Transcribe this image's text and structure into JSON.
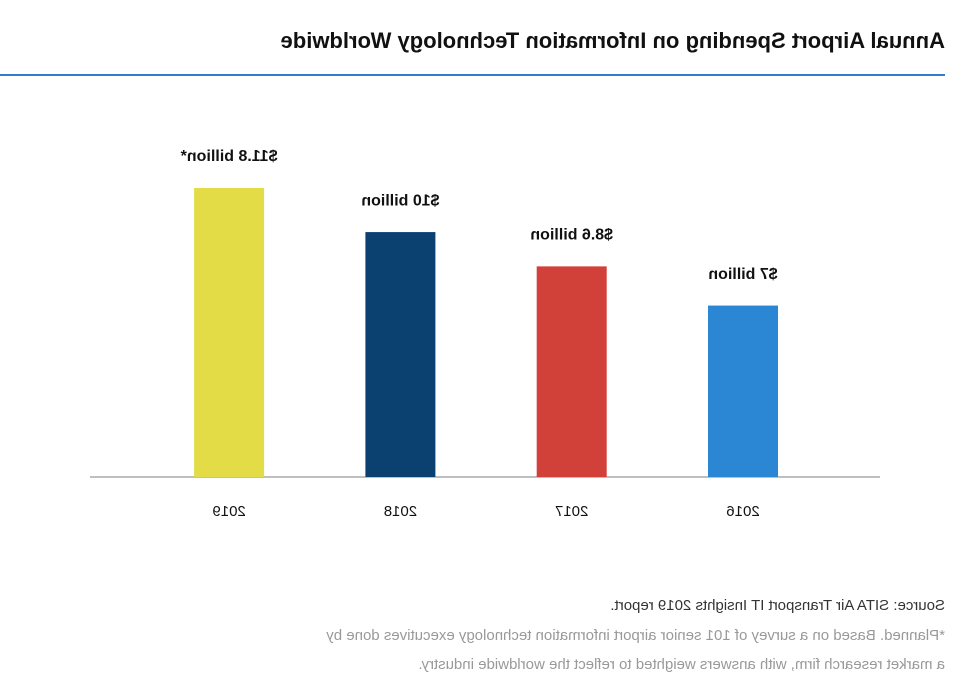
{
  "chart_data": {
    "type": "bar",
    "title": "Annual Airport Spending on Information Technology Worldwide",
    "categories": [
      "2016",
      "2017",
      "2018",
      "2019"
    ],
    "values": [
      7,
      8.6,
      10,
      11.8
    ],
    "value_labels": [
      "$7 billion",
      "$8.6 billion",
      "$10 billion",
      "$11.8 billion*"
    ],
    "colors": [
      "#2b86d4",
      "#d2403a",
      "#0b4170",
      "#e3dc47"
    ],
    "source": "Source:  SITA Air Transport IT Insights 2019 report.",
    "note": [
      "*Planned. Based on a survey of 101 senior airport information technology executives done by",
      "a market research firm, with answers weighted to reflect the worldwide industry."
    ]
  }
}
